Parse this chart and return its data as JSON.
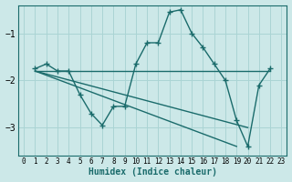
{
  "xlabel": "Humidex (Indice chaleur)",
  "ylabel": "",
  "background_color": "#cce8e8",
  "line_color": "#1a6b6b",
  "grid_color": "#aad4d4",
  "xlim": [
    -0.5,
    23.5
  ],
  "ylim": [
    -3.6,
    -0.4
  ],
  "yticks": [
    -3,
    -2,
    -1
  ],
  "xticks": [
    0,
    1,
    2,
    3,
    4,
    5,
    6,
    7,
    8,
    9,
    10,
    11,
    12,
    13,
    14,
    15,
    16,
    17,
    18,
    19,
    20,
    21,
    22,
    23
  ],
  "series": [
    {
      "x": [
        1,
        2,
        3,
        4,
        5,
        6,
        7,
        8,
        9,
        10,
        11,
        12,
        13,
        14,
        15,
        16,
        17,
        18,
        19,
        20,
        21,
        22
      ],
      "y": [
        -1.75,
        -1.65,
        -1.8,
        -1.8,
        -2.3,
        -2.7,
        -2.95,
        -2.55,
        -2.55,
        -1.65,
        -1.2,
        -1.2,
        -0.55,
        -0.5,
        -1.0,
        -1.3,
        -1.65,
        -2.0,
        -2.85,
        -3.4,
        -2.1,
        -1.75
      ]
    },
    {
      "x": [
        1,
        22
      ],
      "y": [
        -1.8,
        -1.8
      ]
    },
    {
      "x": [
        1,
        19
      ],
      "y": [
        -1.8,
        -3.4
      ]
    },
    {
      "x": [
        1,
        20
      ],
      "y": [
        -1.8,
        -3.0
      ]
    }
  ],
  "marker": "+",
  "markersize": 4,
  "linewidth": 1.0
}
